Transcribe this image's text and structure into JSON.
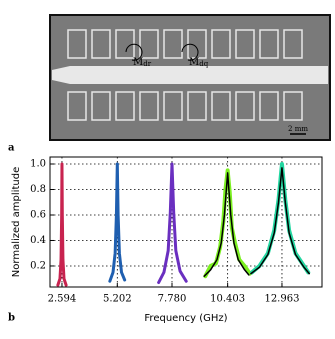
{
  "panel_labels": [
    "a",
    "b"
  ],
  "micrograph": {
    "annotations": [
      {
        "text": "M",
        "sub": "dr"
      },
      {
        "text": "M",
        "sub": "dq"
      }
    ],
    "scale_bar": "2 mm"
  },
  "chart_data": {
    "type": "line",
    "x_label": "Frequency (GHz)",
    "y_label": "Normalized amplitude",
    "xlim": [
      2.03,
      14.85
    ],
    "ylim": [
      0.035,
      1.055
    ],
    "xticks": [
      2.594,
      5.202,
      {
        "value": 7.78,
        "label": "7.780"
      },
      10.403,
      12.963
    ],
    "yticks": [
      0.2,
      0.4,
      0.6,
      0.8,
      {
        "value": 1.0,
        "label": "1.0"
      }
    ],
    "grid": true,
    "series": [
      {
        "color": "#c8234f",
        "width": 3,
        "x": [
          2.4,
          2.5,
          2.55,
          2.58,
          2.594,
          2.61,
          2.64,
          2.69,
          2.79
        ],
        "values": [
          0.05,
          0.1,
          0.25,
          0.6,
          1.0,
          0.6,
          0.25,
          0.1,
          0.05
        ]
      },
      {
        "color": "#1f5fb0",
        "width": 3,
        "x": [
          4.85,
          5.0,
          5.1,
          5.16,
          5.202,
          5.24,
          5.3,
          5.4,
          5.55
        ],
        "values": [
          0.08,
          0.15,
          0.3,
          0.6,
          1.0,
          0.6,
          0.3,
          0.15,
          0.09
        ]
      },
      {
        "color": "#6a2fc0",
        "width": 3,
        "x": [
          7.15,
          7.4,
          7.6,
          7.7,
          7.78,
          7.86,
          7.96,
          8.16,
          8.45
        ],
        "values": [
          0.07,
          0.15,
          0.32,
          0.62,
          1.0,
          0.62,
          0.32,
          0.16,
          0.08
        ]
      },
      {
        "color": "#7cf020",
        "width": 4,
        "x": [
          9.35,
          9.6,
          9.85,
          10.05,
          10.2,
          10.3,
          10.403,
          10.5,
          10.6,
          10.75,
          10.95,
          11.2,
          11.45
        ],
        "values": [
          0.12,
          0.2,
          0.22,
          0.35,
          0.55,
          0.8,
          0.95,
          0.78,
          0.5,
          0.38,
          0.25,
          0.2,
          0.14
        ]
      },
      {
        "color": "#000000",
        "width": 1.5,
        "x": [
          9.3,
          9.6,
          9.9,
          10.1,
          10.25,
          10.403,
          10.55,
          10.7,
          10.9,
          11.2,
          11.4
        ],
        "values": [
          0.12,
          0.17,
          0.25,
          0.38,
          0.6,
          0.93,
          0.6,
          0.38,
          0.25,
          0.17,
          0.13
        ]
      },
      {
        "color": "#22d6a0",
        "width": 4,
        "x": [
          11.55,
          11.9,
          12.3,
          12.6,
          12.8,
          12.963,
          13.12,
          13.3,
          13.6,
          14.0,
          14.2
        ],
        "values": [
          0.15,
          0.2,
          0.3,
          0.48,
          0.72,
          1.0,
          0.72,
          0.48,
          0.3,
          0.2,
          0.15
        ]
      },
      {
        "color": "#000000",
        "width": 1.5,
        "x": [
          11.5,
          11.9,
          12.3,
          12.6,
          12.8,
          12.963,
          13.12,
          13.3,
          13.6,
          14.0,
          14.25
        ],
        "values": [
          0.14,
          0.19,
          0.29,
          0.46,
          0.7,
          0.97,
          0.7,
          0.46,
          0.29,
          0.19,
          0.14
        ]
      }
    ]
  }
}
